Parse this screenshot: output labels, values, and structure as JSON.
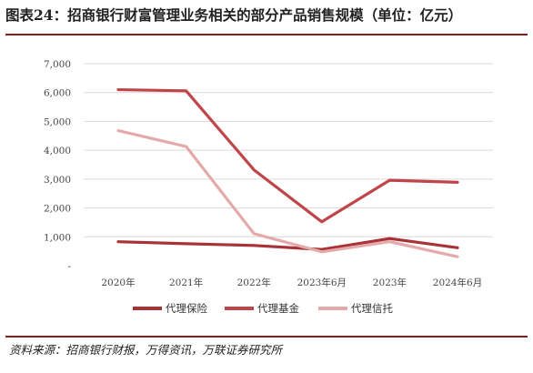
{
  "page": {
    "title": "图表24：招商银行财富管理业务相关的部分产品销售规模（单位：亿元）",
    "source": "资料来源：招商银行财报，万得资讯，万联证券研究所"
  },
  "chart_data": {
    "type": "line",
    "title": "",
    "xlabel": "",
    "ylabel": "",
    "categories": [
      "2020年",
      "2021年",
      "2022年",
      "2023年6月",
      "2023年",
      "2024年6月"
    ],
    "y_tick_labels": [
      "-",
      "1,000",
      "2,000",
      "3,000",
      "4,000",
      "5,000",
      "6,000",
      "7,000"
    ],
    "ylim": [
      0,
      7000
    ],
    "grid": true,
    "legend_position": "bottom",
    "series": [
      {
        "name": "代理保险",
        "color": "#a83236",
        "values": [
          830,
          760,
          700,
          560,
          940,
          620
        ]
      },
      {
        "name": "代理基金",
        "color": "#c0454a",
        "values": [
          6100,
          6060,
          3320,
          1520,
          2960,
          2890
        ]
      },
      {
        "name": "代理信托",
        "color": "#e3aaa9",
        "values": [
          4680,
          4130,
          1110,
          480,
          830,
          310
        ]
      }
    ]
  }
}
